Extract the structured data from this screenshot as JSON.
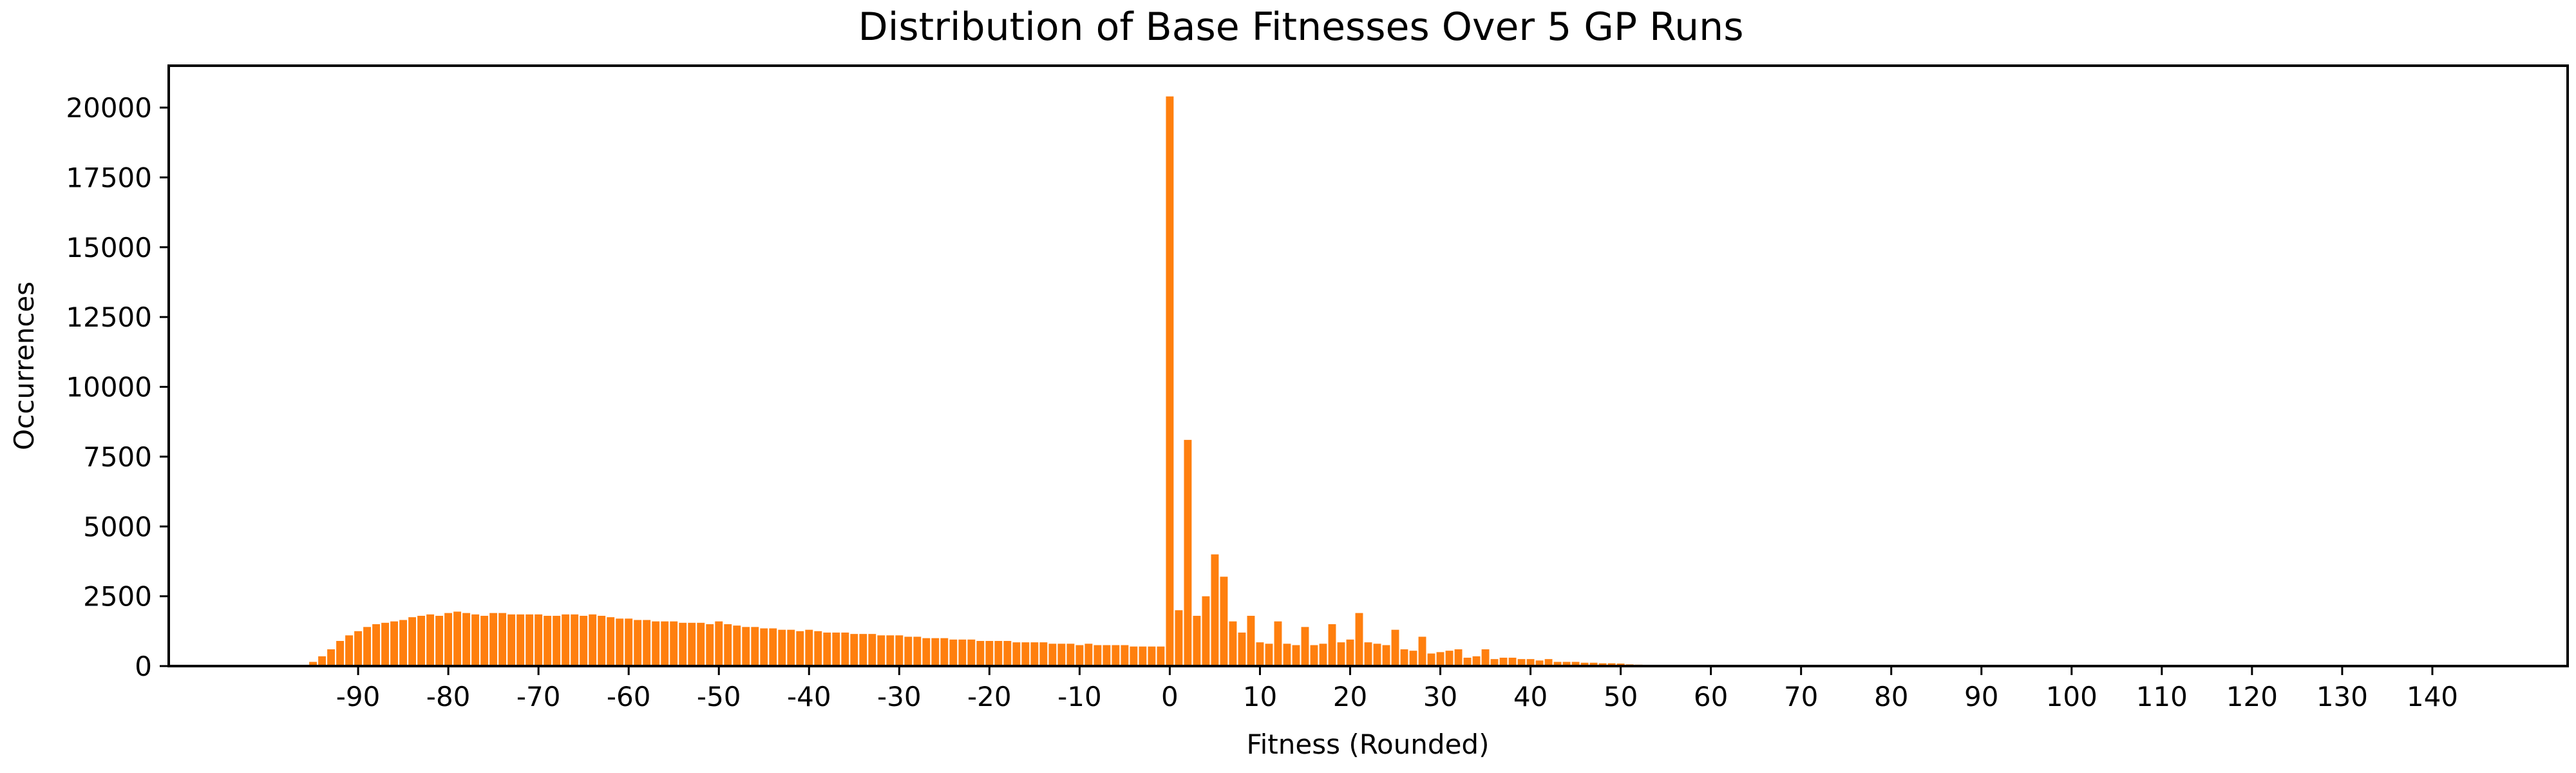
{
  "chart_data": {
    "type": "bar",
    "title": "Distribution of Base Fitnesses Over 5 GP Runs",
    "xlabel": "Fitness (Rounded)",
    "ylabel": "Occurrences",
    "xlim": [
      -111,
      155
    ],
    "ylim": [
      0,
      21500
    ],
    "x_ticks": [
      -90,
      -80,
      -70,
      -60,
      -50,
      -40,
      -30,
      -20,
      -10,
      0,
      10,
      20,
      30,
      40,
      50,
      60,
      70,
      80,
      90,
      100,
      110,
      120,
      130,
      140
    ],
    "y_ticks": [
      0,
      2500,
      5000,
      7500,
      10000,
      12500,
      15000,
      17500,
      20000
    ],
    "grid": false,
    "bar_color": "#ff7f0e",
    "bar_width": 0.85,
    "x": [
      -95,
      -94,
      -93,
      -92,
      -91,
      -90,
      -89,
      -88,
      -87,
      -86,
      -85,
      -84,
      -83,
      -82,
      -81,
      -80,
      -79,
      -78,
      -77,
      -76,
      -75,
      -74,
      -73,
      -72,
      -71,
      -70,
      -69,
      -68,
      -67,
      -66,
      -65,
      -64,
      -63,
      -62,
      -61,
      -60,
      -59,
      -58,
      -57,
      -56,
      -55,
      -54,
      -53,
      -52,
      -51,
      -50,
      -49,
      -48,
      -47,
      -46,
      -45,
      -44,
      -43,
      -42,
      -41,
      -40,
      -39,
      -38,
      -37,
      -36,
      -35,
      -34,
      -33,
      -32,
      -31,
      -30,
      -29,
      -28,
      -27,
      -26,
      -25,
      -24,
      -23,
      -22,
      -21,
      -20,
      -19,
      -18,
      -17,
      -16,
      -15,
      -14,
      -13,
      -12,
      -11,
      -10,
      -9,
      -8,
      -7,
      -6,
      -5,
      -4,
      -3,
      -2,
      -1,
      0,
      1,
      2,
      3,
      4,
      5,
      6,
      7,
      8,
      9,
      10,
      11,
      12,
      13,
      14,
      15,
      16,
      17,
      18,
      19,
      20,
      21,
      22,
      23,
      24,
      25,
      26,
      27,
      28,
      29,
      30,
      31,
      32,
      33,
      34,
      35,
      36,
      37,
      38,
      39,
      40,
      41,
      42,
      43,
      44,
      45,
      46,
      47,
      48,
      49,
      50,
      51,
      52,
      53,
      54,
      55,
      56,
      57,
      58
    ],
    "values": [
      150,
      350,
      600,
      900,
      1100,
      1250,
      1400,
      1500,
      1550,
      1600,
      1650,
      1750,
      1800,
      1850,
      1800,
      1900,
      1950,
      1900,
      1850,
      1800,
      1900,
      1900,
      1850,
      1850,
      1850,
      1850,
      1800,
      1800,
      1850,
      1850,
      1800,
      1850,
      1800,
      1750,
      1700,
      1700,
      1650,
      1650,
      1600,
      1600,
      1600,
      1550,
      1550,
      1550,
      1500,
      1600,
      1500,
      1450,
      1400,
      1400,
      1350,
      1350,
      1300,
      1300,
      1250,
      1300,
      1250,
      1200,
      1200,
      1200,
      1150,
      1150,
      1150,
      1100,
      1100,
      1100,
      1050,
      1050,
      1000,
      1000,
      1000,
      950,
      950,
      950,
      900,
      900,
      900,
      900,
      850,
      850,
      850,
      850,
      800,
      800,
      800,
      750,
      800,
      750,
      750,
      750,
      750,
      700,
      700,
      700,
      700,
      20400,
      2000,
      8100,
      1800,
      2500,
      4000,
      3200,
      1600,
      1200,
      1800,
      850,
      800,
      1600,
      800,
      750,
      1400,
      750,
      800,
      1500,
      850,
      950,
      1900,
      850,
      800,
      750,
      1300,
      600,
      550,
      1050,
      450,
      500,
      550,
      600,
      300,
      350,
      600,
      250,
      300,
      300,
      250,
      250,
      200,
      250,
      150,
      150,
      150,
      120,
      120,
      100,
      100,
      90,
      60,
      50,
      40,
      30,
      20,
      15,
      10,
      5
    ]
  }
}
